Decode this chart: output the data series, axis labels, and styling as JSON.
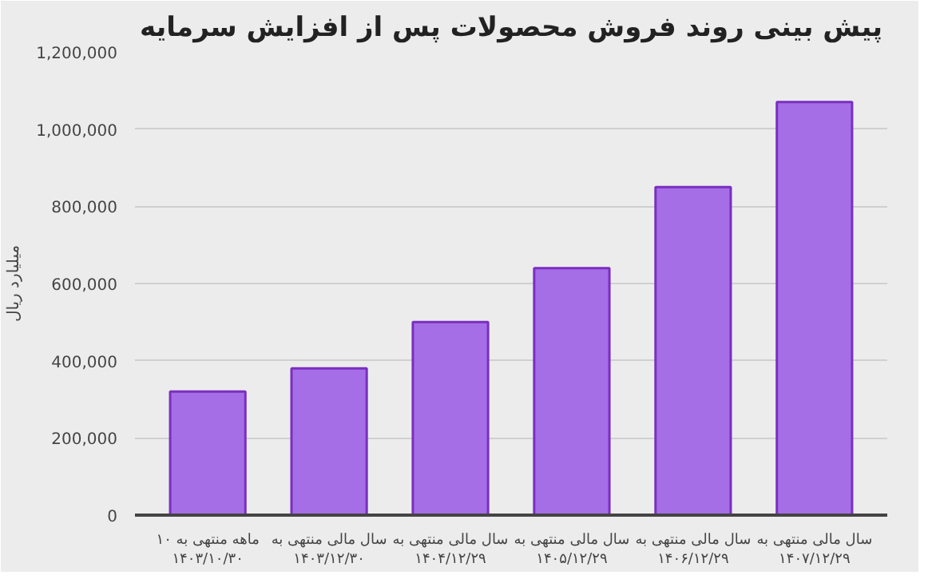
{
  "chart_data": {
    "type": "bar",
    "title": "پیش بینی روند فروش محصولات پس از افزایش سرمایه",
    "ylabel": "میلیارد ریال",
    "categories": [
      "۱۰ ماهه منتهی به\n۱۴۰۳/۱۰/۳۰",
      "سال مالی منتهی به\n۱۴۰۳/۱۲/۳۰",
      "سال مالی منتهی به\n۱۴۰۴/۱۲/۲۹",
      "سال مالی منتهی به\n۱۴۰۵/۱۲/۲۹",
      "سال مالی منتهی به\n۱۴۰۶/۱۲/۲۹",
      "سال مالی منتهی به\n۱۴۰۷/۱۲/۲۹"
    ],
    "values": [
      320000,
      380000,
      500000,
      640000,
      850000,
      1070000
    ],
    "color": "#a66ee6",
    "ylim": [
      0,
      1200000
    ],
    "yticks": [
      {
        "value": 0,
        "label": "0"
      },
      {
        "value": 200000,
        "label": "200,000"
      },
      {
        "value": 400000,
        "label": "400,000"
      },
      {
        "value": 600000,
        "label": "600,000"
      },
      {
        "value": 800000,
        "label": "800,000"
      },
      {
        "value": 1000000,
        "label": "1,000,000"
      },
      {
        "value": 1200000,
        "label": "1,200,000"
      }
    ],
    "grid": "y"
  }
}
